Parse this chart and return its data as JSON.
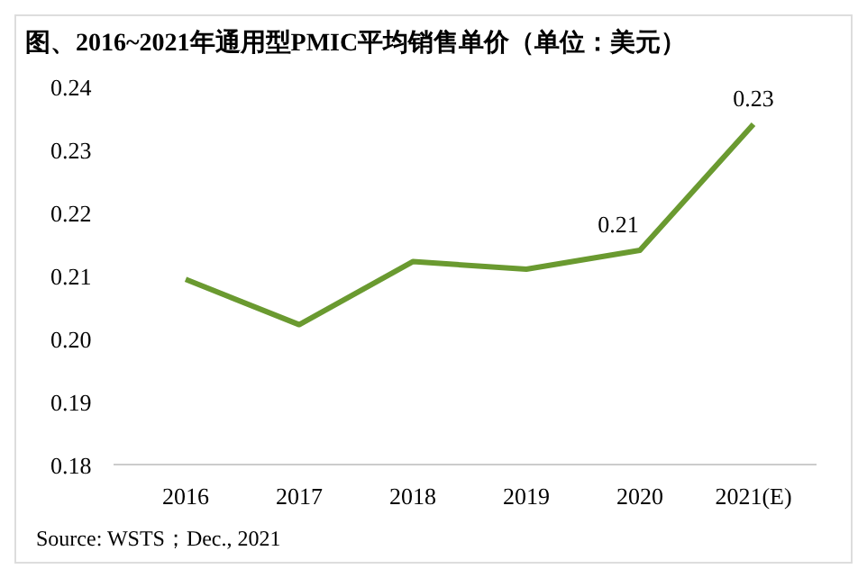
{
  "chart_data": {
    "type": "line",
    "title": "图、2016~2021年通用型PMIC平均销售单价（单位：美元）",
    "annotations": [
      "Source: WSTS；Dec., 2021"
    ],
    "categories": [
      "2016",
      "2017",
      "2018",
      "2019",
      "2020",
      "2021(E)"
    ],
    "series": [
      {
        "color": "#6a9a30",
        "values": [
          0.2094,
          0.2022,
          0.2122,
          0.211,
          0.214,
          0.234
        ],
        "value_labels": [
          null,
          null,
          null,
          null,
          "0.21",
          "0.23"
        ]
      }
    ],
    "ylim": [
      0.18,
      0.24
    ],
    "yticks": [
      0.18,
      0.19,
      {
        "value": 0.2,
        "label": "0.20"
      },
      0.21,
      0.22,
      0.23,
      0.24
    ],
    "grid": false,
    "marker": "none",
    "line_style": "solid"
  }
}
